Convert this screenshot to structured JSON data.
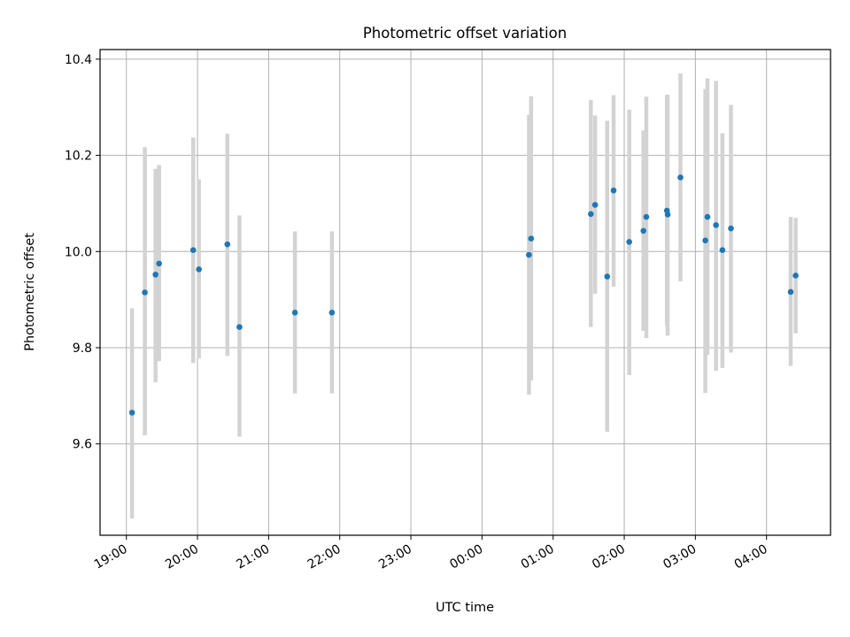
{
  "chart_data": {
    "type": "scatter",
    "title": "Photometric offset variation",
    "xlabel": "UTC time",
    "ylabel": "Photometric offset",
    "x_tick_labels": [
      "19:00",
      "20:00",
      "21:00",
      "22:00",
      "23:00",
      "00:00",
      "01:00",
      "02:00",
      "03:00",
      "04:00"
    ],
    "y_tick_labels": [
      "9.6",
      "9.8",
      "10.0",
      "10.2",
      "10.4"
    ],
    "y_ticks": [
      9.6,
      9.8,
      10.0,
      10.2,
      10.4
    ],
    "xlim_hours_from_1900": [
      -0.37,
      9.9
    ],
    "ylim": [
      9.41,
      10.42
    ],
    "grid": true,
    "point_color": "#1f77b4",
    "errorbar_color": "#d3d3d3",
    "points": [
      {
        "t": 0.08,
        "y": 9.665,
        "lo": 9.445,
        "hi": 9.882
      },
      {
        "t": 0.26,
        "y": 9.915,
        "lo": 9.618,
        "hi": 10.217
      },
      {
        "t": 0.41,
        "y": 9.952,
        "lo": 9.728,
        "hi": 10.172
      },
      {
        "t": 0.46,
        "y": 9.975,
        "lo": 9.772,
        "hi": 10.18
      },
      {
        "t": 0.94,
        "y": 10.003,
        "lo": 9.768,
        "hi": 10.237
      },
      {
        "t": 1.02,
        "y": 9.963,
        "lo": 9.778,
        "hi": 10.15
      },
      {
        "t": 1.42,
        "y": 10.015,
        "lo": 9.783,
        "hi": 10.245
      },
      {
        "t": 1.59,
        "y": 9.843,
        "lo": 9.615,
        "hi": 10.075
      },
      {
        "t": 2.37,
        "y": 9.873,
        "lo": 9.705,
        "hi": 10.042
      },
      {
        "t": 2.89,
        "y": 9.873,
        "lo": 9.705,
        "hi": 10.042
      },
      {
        "t": 5.66,
        "y": 9.993,
        "lo": 9.702,
        "hi": 10.284
      },
      {
        "t": 5.69,
        "y": 10.027,
        "lo": 9.732,
        "hi": 10.323
      },
      {
        "t": 6.53,
        "y": 10.078,
        "lo": 9.843,
        "hi": 10.315
      },
      {
        "t": 6.59,
        "y": 10.097,
        "lo": 9.912,
        "hi": 10.283
      },
      {
        "t": 6.76,
        "y": 9.948,
        "lo": 9.625,
        "hi": 10.272
      },
      {
        "t": 6.85,
        "y": 10.127,
        "lo": 9.927,
        "hi": 10.325
      },
      {
        "t": 7.07,
        "y": 10.02,
        "lo": 9.743,
        "hi": 10.295
      },
      {
        "t": 7.27,
        "y": 10.043,
        "lo": 9.835,
        "hi": 10.252
      },
      {
        "t": 7.31,
        "y": 10.072,
        "lo": 9.82,
        "hi": 10.322
      },
      {
        "t": 7.6,
        "y": 10.085,
        "lo": 9.845,
        "hi": 10.326
      },
      {
        "t": 7.61,
        "y": 10.077,
        "lo": 9.825,
        "hi": 10.326
      },
      {
        "t": 7.79,
        "y": 10.154,
        "lo": 9.938,
        "hi": 10.37
      },
      {
        "t": 8.14,
        "y": 10.023,
        "lo": 9.706,
        "hi": 10.338
      },
      {
        "t": 8.17,
        "y": 10.072,
        "lo": 9.785,
        "hi": 10.36
      },
      {
        "t": 8.29,
        "y": 10.055,
        "lo": 9.752,
        "hi": 10.355
      },
      {
        "t": 8.38,
        "y": 10.003,
        "lo": 9.758,
        "hi": 10.246
      },
      {
        "t": 8.5,
        "y": 10.048,
        "lo": 9.79,
        "hi": 10.305
      },
      {
        "t": 9.34,
        "y": 9.916,
        "lo": 9.762,
        "hi": 10.072
      },
      {
        "t": 9.41,
        "y": 9.95,
        "lo": 9.83,
        "hi": 10.07
      }
    ]
  }
}
